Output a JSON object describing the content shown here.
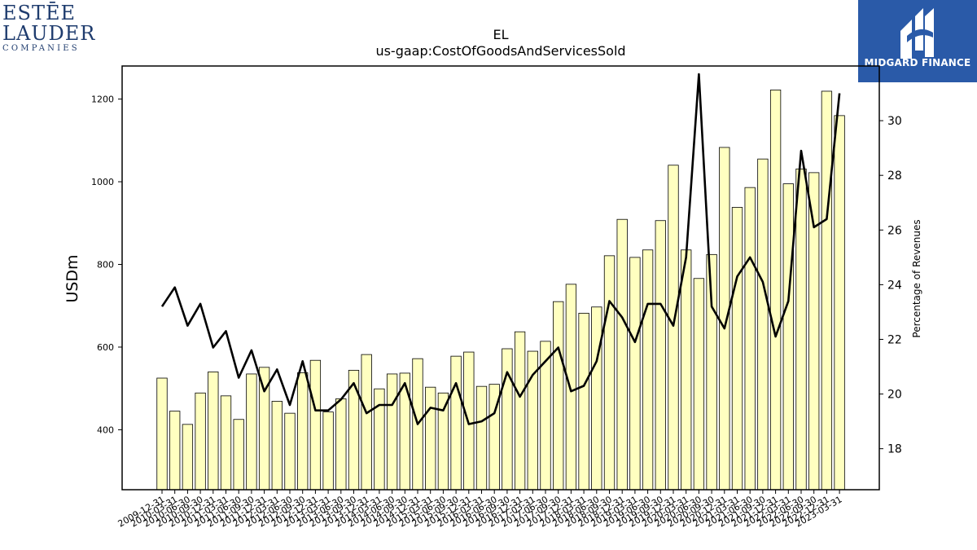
{
  "logos": {
    "left": {
      "line1": "ESTĒE",
      "line2": "LAUDER",
      "line3": "COMPANIES"
    },
    "right": {
      "brand": "MIDGARD FINANCE",
      "color": "#2a5aa8"
    }
  },
  "chart_data": {
    "type": "bar",
    "title": "EL",
    "subtitle": "us-gaap:CostOfGoodsAndServicesSold",
    "ylabel": "USDm",
    "y2label": "Percentage of Revenues",
    "ylim": [
      255,
      1280
    ],
    "y2lim": [
      16.5,
      32.0
    ],
    "yticks": [
      400,
      600,
      800,
      1000,
      1200
    ],
    "y2ticks": [
      18,
      20,
      22,
      24,
      26,
      28,
      30
    ],
    "bar_color": "#ffffc0",
    "line_color": "#000000",
    "categories": [
      "2009-12-31",
      "2010-03-31",
      "2010-06-30",
      "2010-09-30",
      "2010-12-31",
      "2011-03-31",
      "2011-06-30",
      "2011-09-30",
      "2011-12-31",
      "2012-03-31",
      "2012-06-30",
      "2012-09-30",
      "2012-12-31",
      "2013-03-31",
      "2013-06-30",
      "2013-09-30",
      "2013-12-31",
      "2014-03-31",
      "2014-06-30",
      "2014-09-30",
      "2014-12-31",
      "2015-03-31",
      "2015-06-30",
      "2015-09-30",
      "2015-12-31",
      "2016-03-31",
      "2016-06-30",
      "2016-09-30",
      "2016-12-31",
      "2017-03-31",
      "2017-06-30",
      "2017-09-30",
      "2017-12-31",
      "2018-03-31",
      "2018-06-30",
      "2018-09-30",
      "2018-12-31",
      "2019-03-31",
      "2019-06-30",
      "2019-09-30",
      "2019-12-31",
      "2020-03-31",
      "2020-06-30",
      "2020-09-30",
      "2020-12-31",
      "2021-03-31",
      "2021-06-30",
      "2021-09-30",
      "2021-12-31",
      "2022-03-31",
      "2022-06-30",
      "2022-09-30",
      "2022-12-31",
      "2023-03-31"
    ],
    "series": [
      {
        "type": "bar",
        "values": [
          525,
          445,
          413,
          489,
          540,
          482,
          425,
          535,
          551,
          469,
          440,
          538,
          568,
          443,
          475,
          544,
          582,
          499,
          535,
          537,
          572,
          503,
          489,
          578,
          588,
          505,
          510,
          596,
          637,
          590,
          614,
          710,
          752,
          682,
          697,
          821,
          909,
          817,
          835,
          906,
          1040,
          835,
          766,
          824,
          1083,
          938,
          986,
          1055,
          1222,
          995,
          1031,
          1022,
          1219,
          1160
        ]
      },
      {
        "type": "line",
        "values": [
          23.2,
          23.9,
          22.5,
          23.3,
          21.7,
          22.3,
          20.6,
          21.6,
          20.1,
          20.9,
          19.6,
          21.2,
          19.4,
          19.4,
          19.8,
          20.4,
          19.3,
          19.6,
          19.6,
          20.4,
          18.9,
          19.5,
          19.4,
          20.4,
          18.9,
          19.0,
          19.3,
          20.8,
          19.9,
          20.7,
          21.2,
          21.7,
          20.1,
          20.3,
          21.2,
          23.4,
          22.8,
          21.9,
          23.3,
          23.3,
          22.5,
          25.0,
          31.7,
          23.2,
          22.4,
          24.3,
          25.0,
          24.1,
          22.1,
          23.4,
          28.9,
          26.1,
          26.4,
          31.0
        ]
      }
    ]
  }
}
